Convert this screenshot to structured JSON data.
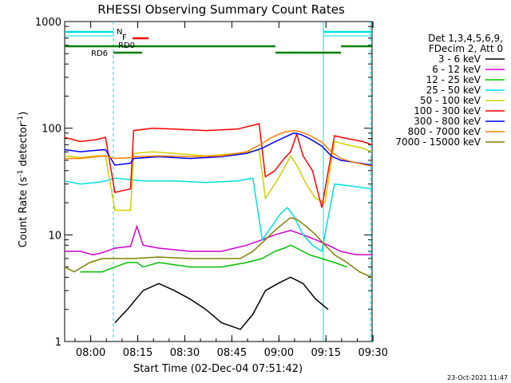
{
  "chart_data": {
    "type": "line",
    "title": "RHESSI Observing Summary Count Rates",
    "xlabel": "Start Time (02-Dec-04 07:51:42)",
    "ylabel": "Count Rate (s",
    "ylabel_sup1": "-1",
    "ylabel_mid": " detector",
    "ylabel_sup2": "-1",
    "ylabel_end": ")",
    "yscale": "log",
    "ylim": [
      1,
      1000
    ],
    "xlim_minutes": [
      0,
      98
    ],
    "x_tick_labels": [
      "08:00",
      "08:15",
      "08:30",
      "08:45",
      "09:00",
      "09:15",
      "09:30"
    ],
    "x_tick_minutes": [
      8.3,
      23.3,
      38.3,
      53.3,
      68.3,
      83.3,
      98.3
    ],
    "y_tick_labels": [
      "1",
      "10",
      "100",
      "1000"
    ],
    "y_tick_values": [
      1,
      10,
      100,
      1000
    ],
    "legend_header": [
      "Det 1,3,4,5,6,9,",
      "FDecim 2, Att 0"
    ],
    "annotations": {
      "night": "N",
      "flare": "F",
      "rd0": "RD0",
      "rd6": "RD6"
    },
    "timestamp": "23-Oct-2021 11:47",
    "series": [
      {
        "name": "3 - 6 keV",
        "color": "#000000",
        "values": [
          [
            16,
            1.5
          ],
          [
            20,
            2.0
          ],
          [
            25,
            3.0
          ],
          [
            30,
            3.5
          ],
          [
            35,
            3.0
          ],
          [
            40,
            2.5
          ],
          [
            45,
            2.0
          ],
          [
            50,
            1.5
          ],
          [
            56,
            1.3
          ],
          [
            60,
            1.8
          ],
          [
            64,
            3.0
          ],
          [
            68,
            3.5
          ],
          [
            72,
            4.0
          ],
          [
            76,
            3.5
          ],
          [
            80,
            2.5
          ],
          [
            84,
            2.0
          ]
        ]
      },
      {
        "name": "6 - 12 keV",
        "color": "#d000d0",
        "values": [
          [
            -3,
            7.0
          ],
          [
            5,
            7.0
          ],
          [
            9,
            6.5
          ],
          [
            12,
            6.8
          ],
          [
            16,
            7.5
          ],
          [
            21,
            7.8
          ],
          [
            23,
            12.0
          ],
          [
            25,
            8.0
          ],
          [
            30,
            7.5
          ],
          [
            40,
            7.0
          ],
          [
            50,
            7.0
          ],
          [
            58,
            8.0
          ],
          [
            63,
            9.0
          ],
          [
            67,
            10.0
          ],
          [
            72,
            11.0
          ],
          [
            76,
            10.0
          ],
          [
            80,
            9.0
          ],
          [
            84,
            8.0
          ],
          [
            88,
            7.0
          ],
          [
            93,
            6.5
          ],
          [
            98,
            6.5
          ]
        ]
      },
      {
        "name": "12 - 25 keV",
        "color": "#00c000",
        "values": [
          [
            5,
            4.5
          ],
          [
            9,
            4.5
          ],
          [
            12,
            4.5
          ],
          [
            16,
            5.0
          ],
          [
            20,
            5.5
          ],
          [
            23,
            5.5
          ],
          [
            25,
            5.0
          ],
          [
            30,
            5.5
          ],
          [
            40,
            5.0
          ],
          [
            50,
            5.0
          ],
          [
            58,
            5.5
          ],
          [
            63,
            6.0
          ],
          [
            67,
            7.0
          ],
          [
            70,
            7.5
          ],
          [
            72,
            8.0
          ],
          [
            74,
            7.5
          ],
          [
            78,
            6.5
          ],
          [
            82,
            6.0
          ],
          [
            86,
            5.5
          ],
          [
            90,
            5.0
          ]
        ]
      },
      {
        "name": "25 - 50 keV",
        "color": "#00e0e0",
        "values": [
          [
            -3,
            32
          ],
          [
            5,
            30
          ],
          [
            10,
            31
          ],
          [
            13,
            32
          ],
          [
            16,
            34
          ],
          [
            25,
            32
          ],
          [
            35,
            32
          ],
          [
            45,
            31
          ],
          [
            55,
            32
          ],
          [
            60,
            34
          ],
          [
            63,
            9.0
          ],
          [
            66,
            12.0
          ],
          [
            69,
            16.0
          ],
          [
            71,
            18.0
          ],
          [
            73,
            15.0
          ],
          [
            76,
            10.0
          ],
          [
            79,
            8.0
          ],
          [
            82,
            7.0
          ],
          [
            86,
            30
          ],
          [
            90,
            29
          ],
          [
            98,
            27
          ]
        ]
      },
      {
        "name": "50 - 100 keV",
        "color": "#d0d000",
        "values": [
          [
            -3,
            55
          ],
          [
            5,
            53
          ],
          [
            10,
            55
          ],
          [
            13,
            55
          ],
          [
            16,
            17
          ],
          [
            20,
            17
          ],
          [
            21,
            17
          ],
          [
            22,
            58
          ],
          [
            28,
            60
          ],
          [
            35,
            58
          ],
          [
            45,
            55
          ],
          [
            55,
            58
          ],
          [
            62,
            62
          ],
          [
            64,
            22
          ],
          [
            67,
            30
          ],
          [
            70,
            42
          ],
          [
            72,
            55
          ],
          [
            74,
            45
          ],
          [
            77,
            30
          ],
          [
            80,
            22
          ],
          [
            83,
            20
          ],
          [
            86,
            75
          ],
          [
            90,
            70
          ],
          [
            95,
            65
          ],
          [
            98,
            60
          ]
        ]
      },
      {
        "name": "100 - 300 keV",
        "color": "#ff0000",
        "values": [
          [
            -3,
            82
          ],
          [
            5,
            75
          ],
          [
            10,
            78
          ],
          [
            13,
            82
          ],
          [
            16,
            25
          ],
          [
            21,
            27
          ],
          [
            22,
            95
          ],
          [
            28,
            100
          ],
          [
            35,
            98
          ],
          [
            45,
            95
          ],
          [
            55,
            98
          ],
          [
            62,
            110
          ],
          [
            64,
            35
          ],
          [
            67,
            40
          ],
          [
            70,
            52
          ],
          [
            72,
            60
          ],
          [
            74,
            88
          ],
          [
            76,
            55
          ],
          [
            79,
            40
          ],
          [
            82,
            18
          ],
          [
            86,
            85
          ],
          [
            90,
            80
          ],
          [
            95,
            75
          ],
          [
            98,
            70
          ]
        ]
      },
      {
        "name": "300 - 800 keV",
        "color": "#0000ff",
        "values": [
          [
            -3,
            63
          ],
          [
            5,
            60
          ],
          [
            10,
            62
          ],
          [
            13,
            63
          ],
          [
            16,
            45
          ],
          [
            21,
            47
          ],
          [
            22,
            52
          ],
          [
            30,
            54
          ],
          [
            40,
            52
          ],
          [
            50,
            54
          ],
          [
            58,
            58
          ],
          [
            63,
            65
          ],
          [
            66,
            72
          ],
          [
            70,
            82
          ],
          [
            73,
            90
          ],
          [
            75,
            88
          ],
          [
            78,
            80
          ],
          [
            82,
            68
          ],
          [
            85,
            55
          ],
          [
            88,
            50
          ],
          [
            92,
            48
          ],
          [
            98,
            45
          ]
        ]
      },
      {
        "name": "800 - 7000 keV",
        "color": "#ff8000",
        "values": [
          [
            -3,
            52
          ],
          [
            5,
            52
          ],
          [
            10,
            54
          ],
          [
            13,
            55
          ],
          [
            16,
            52
          ],
          [
            21,
            53
          ],
          [
            22,
            54
          ],
          [
            30,
            55
          ],
          [
            40,
            54
          ],
          [
            50,
            55
          ],
          [
            58,
            60
          ],
          [
            63,
            72
          ],
          [
            66,
            82
          ],
          [
            70,
            92
          ],
          [
            73,
            95
          ],
          [
            75,
            93
          ],
          [
            78,
            86
          ],
          [
            82,
            74
          ],
          [
            85,
            60
          ],
          [
            88,
            52
          ],
          [
            92,
            48
          ],
          [
            98,
            44
          ]
        ]
      },
      {
        "name": "7000 - 15000 keV",
        "color": "#808000",
        "values": [
          [
            -3,
            5.0
          ],
          [
            3,
            4.5
          ],
          [
            8,
            5.5
          ],
          [
            12,
            6.0
          ],
          [
            16,
            6.0
          ],
          [
            22,
            6.0
          ],
          [
            30,
            6.2
          ],
          [
            40,
            6.0
          ],
          [
            50,
            6.0
          ],
          [
            56,
            6.0
          ],
          [
            60,
            7.0
          ],
          [
            64,
            9.0
          ],
          [
            67,
            11.0
          ],
          [
            70,
            13.0
          ],
          [
            72,
            14.5
          ],
          [
            74,
            14.0
          ],
          [
            77,
            12.0
          ],
          [
            80,
            10.0
          ],
          [
            83,
            8.0
          ],
          [
            86,
            6.5
          ],
          [
            90,
            5.5
          ],
          [
            94,
            4.5
          ],
          [
            98,
            4.0
          ]
        ]
      }
    ]
  }
}
